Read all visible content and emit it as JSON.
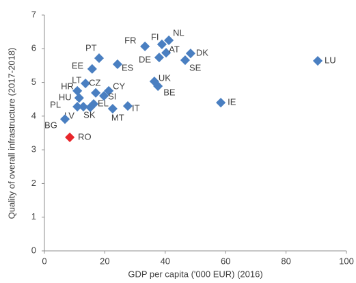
{
  "chart_data": {
    "type": "scatter",
    "x_label": "GDP per capita ('000 EUR) (2016)",
    "y_label": "Quality of overall infrastructure (2017-2018)",
    "labels": [
      "LU",
      "IE",
      "FR",
      "FI",
      "NL",
      "AT",
      "DE",
      "DK",
      "SE",
      "UK",
      "BE",
      "ES",
      "PT",
      "EE",
      "LT",
      "CZ",
      "HR",
      "HU",
      "CY",
      "SI",
      "EL",
      "IT",
      "MT",
      "SK",
      "LV",
      "PL",
      "BG",
      "RO"
    ],
    "x": [
      90.5,
      58.4,
      33.3,
      38.9,
      41.2,
      40.3,
      38.0,
      48.4,
      46.6,
      36.4,
      37.6,
      24.2,
      18.1,
      15.8,
      13.6,
      17.0,
      10.9,
      11.5,
      21.3,
      19.7,
      16.3,
      27.6,
      22.6,
      15.2,
      12.9,
      10.9,
      6.8,
      8.4
    ],
    "y": [
      5.64,
      4.4,
      6.07,
      6.13,
      6.25,
      5.88,
      5.74,
      5.86,
      5.66,
      5.03,
      4.89,
      5.54,
      5.72,
      5.4,
      4.97,
      4.69,
      4.75,
      4.54,
      4.75,
      4.6,
      4.36,
      4.3,
      4.22,
      4.26,
      4.28,
      4.28,
      3.91,
      3.37
    ],
    "colors": [
      "#4a7fc1",
      "#4a7fc1",
      "#4a7fc1",
      "#4a7fc1",
      "#4a7fc1",
      "#4a7fc1",
      "#4a7fc1",
      "#4a7fc1",
      "#4a7fc1",
      "#4a7fc1",
      "#4a7fc1",
      "#4a7fc1",
      "#4a7fc1",
      "#4a7fc1",
      "#4a7fc1",
      "#4a7fc1",
      "#4a7fc1",
      "#4a7fc1",
      "#4a7fc1",
      "#4a7fc1",
      "#4a7fc1",
      "#4a7fc1",
      "#4a7fc1",
      "#4a7fc1",
      "#4a7fc1",
      "#4a7fc1",
      "#4a7fc1",
      "#e8262b"
    ],
    "xlim": [
      0,
      100
    ],
    "xticks": [
      0,
      20,
      40,
      60,
      80,
      100
    ],
    "ylim": [
      0,
      7
    ],
    "yticks": [
      0,
      1,
      2,
      3,
      4,
      5,
      6,
      7
    ]
  }
}
